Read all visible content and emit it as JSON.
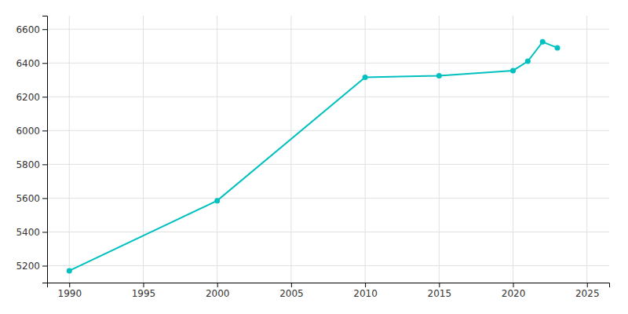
{
  "chart_data": {
    "type": "line",
    "x": [
      1990,
      2000,
      2010,
      2015,
      2020,
      2021,
      2022,
      2023
    ],
    "values": [
      5170,
      5585,
      6315,
      6325,
      6355,
      6410,
      6525,
      6490
    ],
    "color": "#00C0C0",
    "marker": "circle",
    "xlim": [
      1988.5,
      2026.5
    ],
    "ylim": [
      5100,
      6680
    ],
    "xticks": [
      1990,
      1995,
      2000,
      2005,
      2010,
      2015,
      2020,
      2025
    ],
    "yticks": [
      5200,
      5400,
      5600,
      5800,
      6000,
      6200,
      6400,
      6600
    ],
    "grid": true
  }
}
